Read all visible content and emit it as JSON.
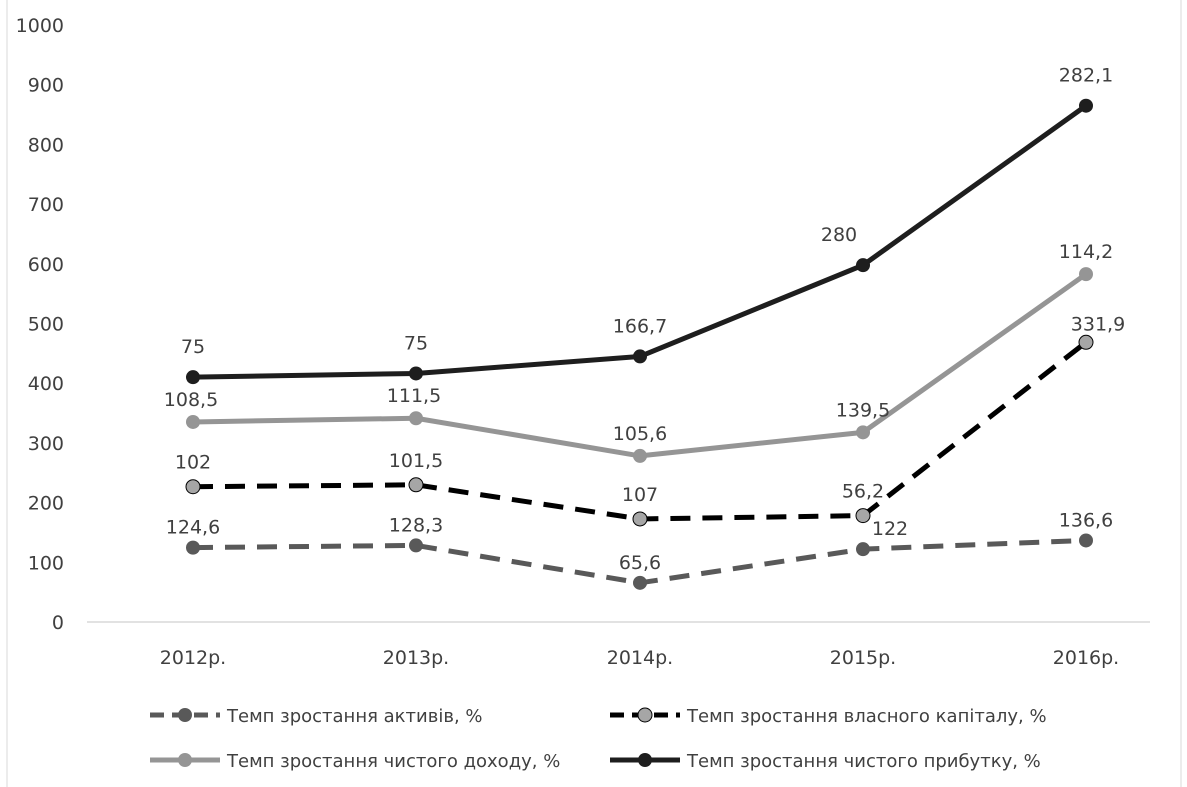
{
  "chart_data": {
    "type": "line",
    "categories": [
      "2012р.",
      "2013р.",
      "2014р.",
      "2015р.",
      "2016р."
    ],
    "ylim": [
      0,
      1000
    ],
    "yticks": [
      "0",
      "100",
      "200",
      "300",
      "400",
      "500",
      "600",
      "700",
      "800",
      "900",
      "1000"
    ],
    "grid": false,
    "legend_position": "bottom",
    "series": [
      {
        "name": "Темп зростання активів, %",
        "values": [
          124.6,
          128.3,
          65.6,
          122,
          136.6
        ],
        "labels": [
          "124,6",
          "128,3",
          "65,6",
          "122",
          "136,6"
        ],
        "color": "#595959",
        "style": "dashed"
      },
      {
        "name": "Темп зростання власного капіталу, %",
        "values": [
          226.6,
          229.8,
          172.6,
          178.2,
          468.5
        ],
        "labels": [
          "102",
          "101,5",
          "107",
          "56,2",
          "331,9"
        ],
        "color": "#000000",
        "marker_color": "#a6a6a6",
        "style": "dashed"
      },
      {
        "name": "Темп зростання чистого доходу, %",
        "values": [
          335.1,
          341.3,
          278.2,
          317.7,
          582.7
        ],
        "labels": [
          "108,5",
          "111,5",
          "105,6",
          "139,5",
          "114,2"
        ],
        "color": "#959595",
        "style": "solid"
      },
      {
        "name": "Темп зростання чистого прибутку, %",
        "values": [
          410.1,
          416.3,
          444.9,
          597.7,
          864.8
        ],
        "labels": [
          "75",
          "75",
          "166,7",
          "280",
          "282,1"
        ],
        "color": "#1e1e1e",
        "style": "solid"
      }
    ]
  }
}
